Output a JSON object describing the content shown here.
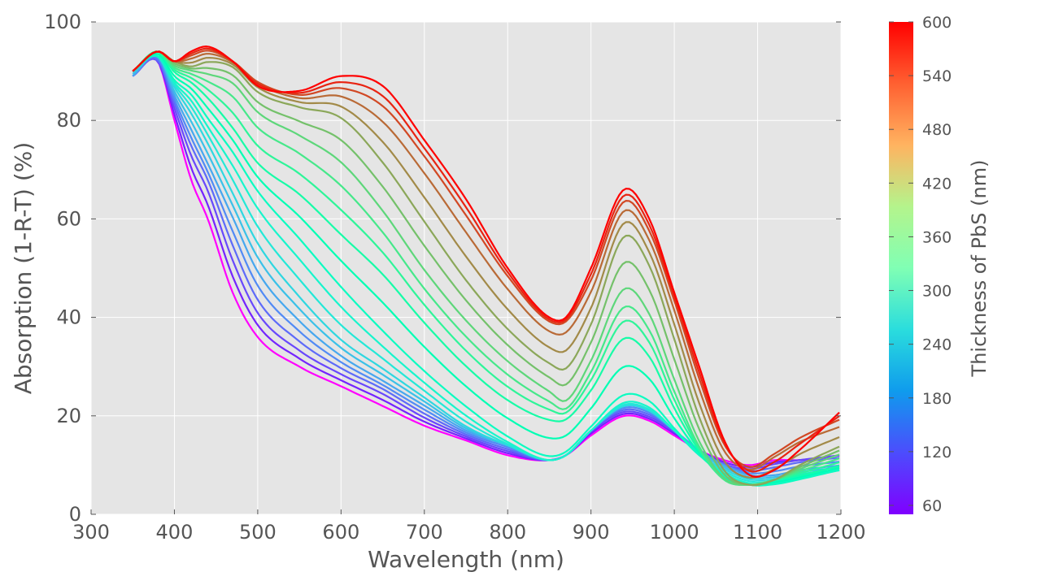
{
  "chart_data": {
    "type": "line",
    "xlabel": "Wavelength (nm)",
    "ylabel": "Absorption (1-R-T) (%)",
    "xlim": [
      300,
      1200
    ],
    "ylim": [
      0,
      100
    ],
    "xticks": [
      300,
      400,
      500,
      600,
      700,
      800,
      900,
      1000,
      1100,
      1200
    ],
    "yticks": [
      0,
      20,
      40,
      60,
      80,
      100
    ],
    "grid": true,
    "background": "#e5e5e5",
    "colormap": "rainbow",
    "series_parameter": "Thickness of PbS (nm)",
    "thickness_range_nm": [
      50,
      600
    ],
    "thickness_step_nm": 25,
    "colorbar": {
      "label": "Thickness of PbS (nm)",
      "range": [
        50,
        600
      ],
      "ticks": [
        60,
        120,
        180,
        240,
        300,
        360,
        420,
        480,
        540,
        600
      ],
      "placement": "right"
    },
    "x": [
      350,
      380,
      400,
      420,
      440,
      470,
      500,
      550,
      600,
      650,
      700,
      750,
      800,
      850,
      870,
      900,
      940,
      970,
      1000,
      1030,
      1060,
      1090,
      1120,
      1150,
      1200
    ],
    "series": [
      {
        "values": [
          89,
          92,
          80,
          68,
          60,
          45,
          36,
          30,
          26,
          22,
          18,
          15,
          12,
          11,
          12,
          16,
          20,
          19,
          16,
          13,
          11,
          10,
          11,
          11,
          12
        ]
      },
      {
        "values": [
          89,
          92,
          83,
          74,
          67,
          53,
          42,
          34,
          29,
          25,
          20,
          16,
          13,
          11,
          12,
          17,
          21,
          20,
          17,
          13,
          10,
          9,
          10,
          11,
          12
        ]
      },
      {
        "values": [
          89,
          93,
          85,
          78,
          71,
          60,
          49,
          39,
          32,
          27,
          22,
          17,
          14,
          11,
          12,
          17,
          22,
          21,
          17,
          13,
          10,
          8,
          8,
          9,
          10
        ]
      },
      {
        "values": [
          90,
          93,
          87,
          82,
          76,
          66,
          56,
          45,
          36,
          30,
          24,
          18,
          14,
          11,
          12,
          17,
          22,
          21,
          17,
          12,
          9,
          7,
          7,
          8,
          9
        ]
      },
      {
        "values": [
          90,
          93,
          88,
          85,
          80,
          73,
          65,
          55,
          45,
          36,
          28,
          21,
          15,
          11,
          12,
          17,
          23,
          22,
          17,
          12,
          8,
          6,
          6,
          7,
          9
        ]
      },
      {
        "values": [
          90,
          94,
          90,
          88,
          85,
          79,
          72,
          66,
          58,
          50,
          40,
          31,
          24,
          20,
          20,
          26,
          37,
          33,
          22,
          13,
          7,
          6,
          7,
          8,
          10
        ]
      },
      {
        "values": [
          90,
          94,
          91,
          90,
          89,
          87,
          81,
          76,
          70,
          60,
          48,
          38,
          30,
          24,
          22,
          30,
          44,
          39,
          26,
          14,
          7,
          6,
          7,
          9,
          12
        ]
      },
      {
        "values": [
          90,
          94,
          92,
          91,
          92,
          91,
          86,
          83,
          81,
          72,
          60,
          48,
          38,
          31,
          30,
          39,
          57,
          51,
          36,
          20,
          9,
          6,
          7,
          10,
          14
        ]
      },
      {
        "values": [
          90,
          94,
          92,
          93,
          94,
          92,
          88,
          85,
          86,
          82,
          72,
          60,
          48,
          39,
          39,
          47,
          63,
          57,
          43,
          27,
          14,
          10,
          13,
          16,
          19
        ]
      },
      {
        "values": [
          90,
          94,
          92,
          94,
          95,
          92,
          87,
          86,
          89,
          87,
          76,
          64,
          50,
          40,
          40,
          50,
          66,
          60,
          45,
          30,
          15,
          8,
          9,
          13,
          21
        ]
      }
    ]
  }
}
